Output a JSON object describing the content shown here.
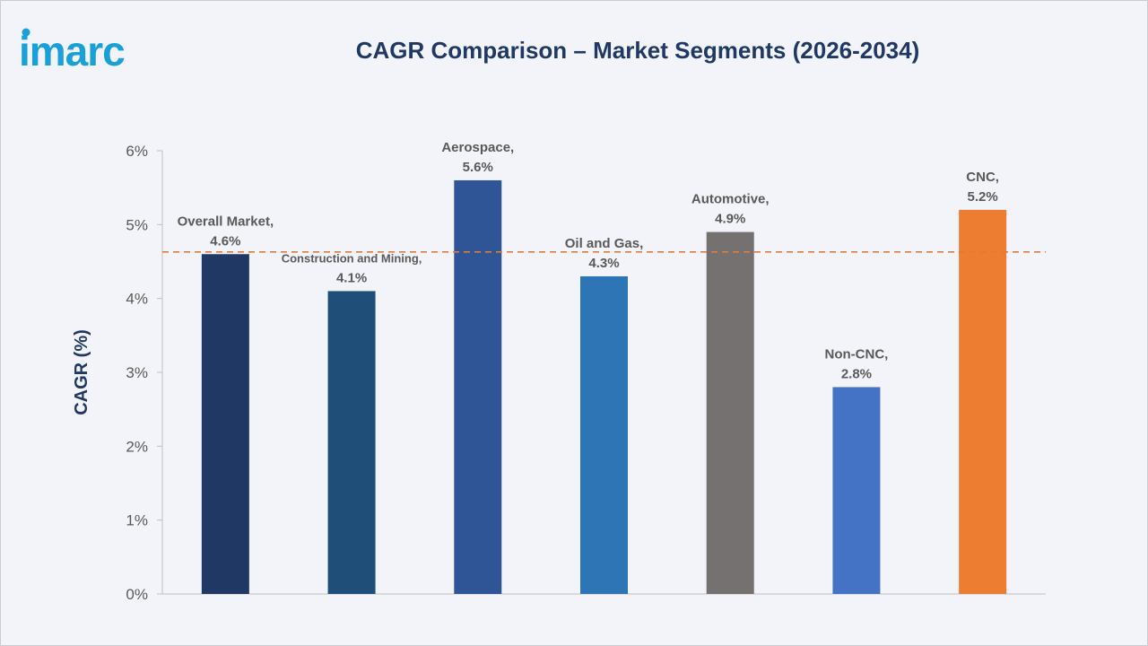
{
  "logo_text": "imarc",
  "colors": {
    "background": "#f2f4f9",
    "title": "#1f3864",
    "axis_text": "#595959",
    "label_text": "#595959",
    "reference_line": "#e07b39",
    "logo": "#1aa0d8"
  },
  "chart_data": {
    "type": "bar",
    "title": "CAGR Comparison – Market Segments (2026-2034)",
    "ylabel": "CAGR (%)",
    "xlabel": "",
    "ylim": [
      0,
      6
    ],
    "yticks": [
      0,
      1,
      2,
      3,
      4,
      5,
      6
    ],
    "ytick_labels": [
      "0%",
      "1%",
      "2%",
      "3%",
      "4%",
      "5%",
      "6%"
    ],
    "grid": false,
    "categories": [
      "Overall Market",
      "Construction and Mining",
      "Aerospace",
      "Oil and Gas",
      "Automotive",
      "Non-CNC",
      "CNC"
    ],
    "values": [
      4.6,
      4.1,
      5.6,
      4.3,
      4.9,
      2.8,
      5.2
    ],
    "data_labels": [
      [
        "Overall Market,",
        "4.6%"
      ],
      [
        "Construction and Mining,",
        "4.1%"
      ],
      [
        "Aerospace,",
        "5.6%"
      ],
      [
        "Oil and Gas,",
        "4.3%"
      ],
      [
        "Automotive,",
        "4.9%"
      ],
      [
        "Non-CNC,",
        "2.8%"
      ],
      [
        "CNC,",
        "5.2%"
      ]
    ],
    "bar_colors": [
      "#1f3864",
      "#1f4e79",
      "#2f5597",
      "#2e75b6",
      "#767171",
      "#4472c4",
      "#ed7d31"
    ],
    "reference_line": {
      "value": 4.63,
      "style": "dashed"
    }
  }
}
